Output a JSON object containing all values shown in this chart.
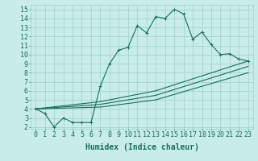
{
  "title": "",
  "xlabel": "Humidex (Indice chaleur)",
  "bg_color": "#c8ede8",
  "grid_color": "#9ececa",
  "line_color": "#1a6b5e",
  "xmin": -0.5,
  "xmax": 23.5,
  "ymin": 1.8,
  "ymax": 15.5,
  "yticks": [
    2,
    3,
    4,
    5,
    6,
    7,
    8,
    9,
    10,
    11,
    12,
    13,
    14,
    15
  ],
  "xticks": [
    0,
    1,
    2,
    3,
    4,
    5,
    6,
    7,
    8,
    9,
    10,
    11,
    12,
    13,
    14,
    15,
    16,
    17,
    18,
    19,
    20,
    21,
    22,
    23
  ],
  "line1_x": [
    0,
    1,
    2,
    3,
    4,
    5,
    6,
    7,
    8,
    9,
    10,
    11,
    12,
    13,
    14,
    15,
    16,
    17,
    18,
    19,
    20,
    21,
    22,
    23
  ],
  "line1_y": [
    4.0,
    3.5,
    2.0,
    3.0,
    2.5,
    2.5,
    2.5,
    6.5,
    9.0,
    10.5,
    10.8,
    13.2,
    12.4,
    14.2,
    14.0,
    15.0,
    14.5,
    11.7,
    12.5,
    11.1,
    10.0,
    10.1,
    9.5,
    9.3
  ],
  "line2_x": [
    0,
    7,
    13,
    23
  ],
  "line2_y": [
    4.0,
    4.8,
    6.0,
    9.3
  ],
  "line3_x": [
    0,
    7,
    13,
    23
  ],
  "line3_y": [
    4.0,
    4.5,
    5.5,
    8.7
  ],
  "line4_x": [
    0,
    7,
    13,
    23
  ],
  "line4_y": [
    4.0,
    4.2,
    5.0,
    8.0
  ],
  "fontsize_label": 7,
  "fontsize_tick": 6
}
